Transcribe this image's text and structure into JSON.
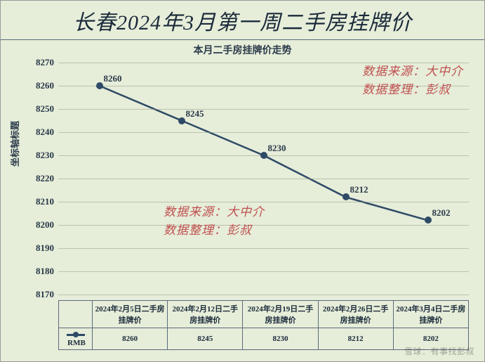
{
  "title": "长春2024年3月第一周二手房挂牌价",
  "subtitle": "本月二手房挂牌价走势",
  "ylabel": "坐标轴标题",
  "chart": {
    "type": "line",
    "ylim": [
      8170,
      8270
    ],
    "ytick_step": 10,
    "yticks": [
      8170,
      8180,
      8190,
      8200,
      8210,
      8220,
      8230,
      8240,
      8250,
      8260,
      8270
    ],
    "categories": [
      "2024年2月5日二手房挂牌价",
      "2024年2月12日二手房挂牌价",
      "2024年2月19日二手房挂牌价",
      "2024年2月26日二手房挂牌价",
      "2024年3月4日二手房挂牌价"
    ],
    "values": [
      8260,
      8245,
      8230,
      8212,
      8202
    ],
    "series_name": "RMB",
    "line_color": "#2e4a66",
    "marker_color": "#2e4a66",
    "marker_size": 10,
    "line_width": 2.5,
    "background_color": "#e6edd9",
    "grid_color": "rgba(150,160,140,0.55)",
    "label_fontsize": 13,
    "title_fontsize": 30
  },
  "annotations": [
    {
      "lines": [
        "数据来源：大中介",
        "数据整理：彭叔"
      ],
      "pos": "top-right"
    },
    {
      "lines": [
        "数据来源：大中介",
        "数据整理：彭叔"
      ],
      "pos": "mid"
    }
  ],
  "table": {
    "lead_blank": "",
    "lead_series": "RMB",
    "headers": [
      "2024年2月5日二手房挂牌价",
      "2024年2月12日二手房挂牌价",
      "2024年2月19日二手房挂牌价",
      "2024年2月26日二手房挂牌价",
      "2024年3月4日二手房挂牌价"
    ],
    "row": [
      8260,
      8245,
      8230,
      8212,
      8202
    ]
  },
  "watermark": "雪球：有事找彭叔"
}
